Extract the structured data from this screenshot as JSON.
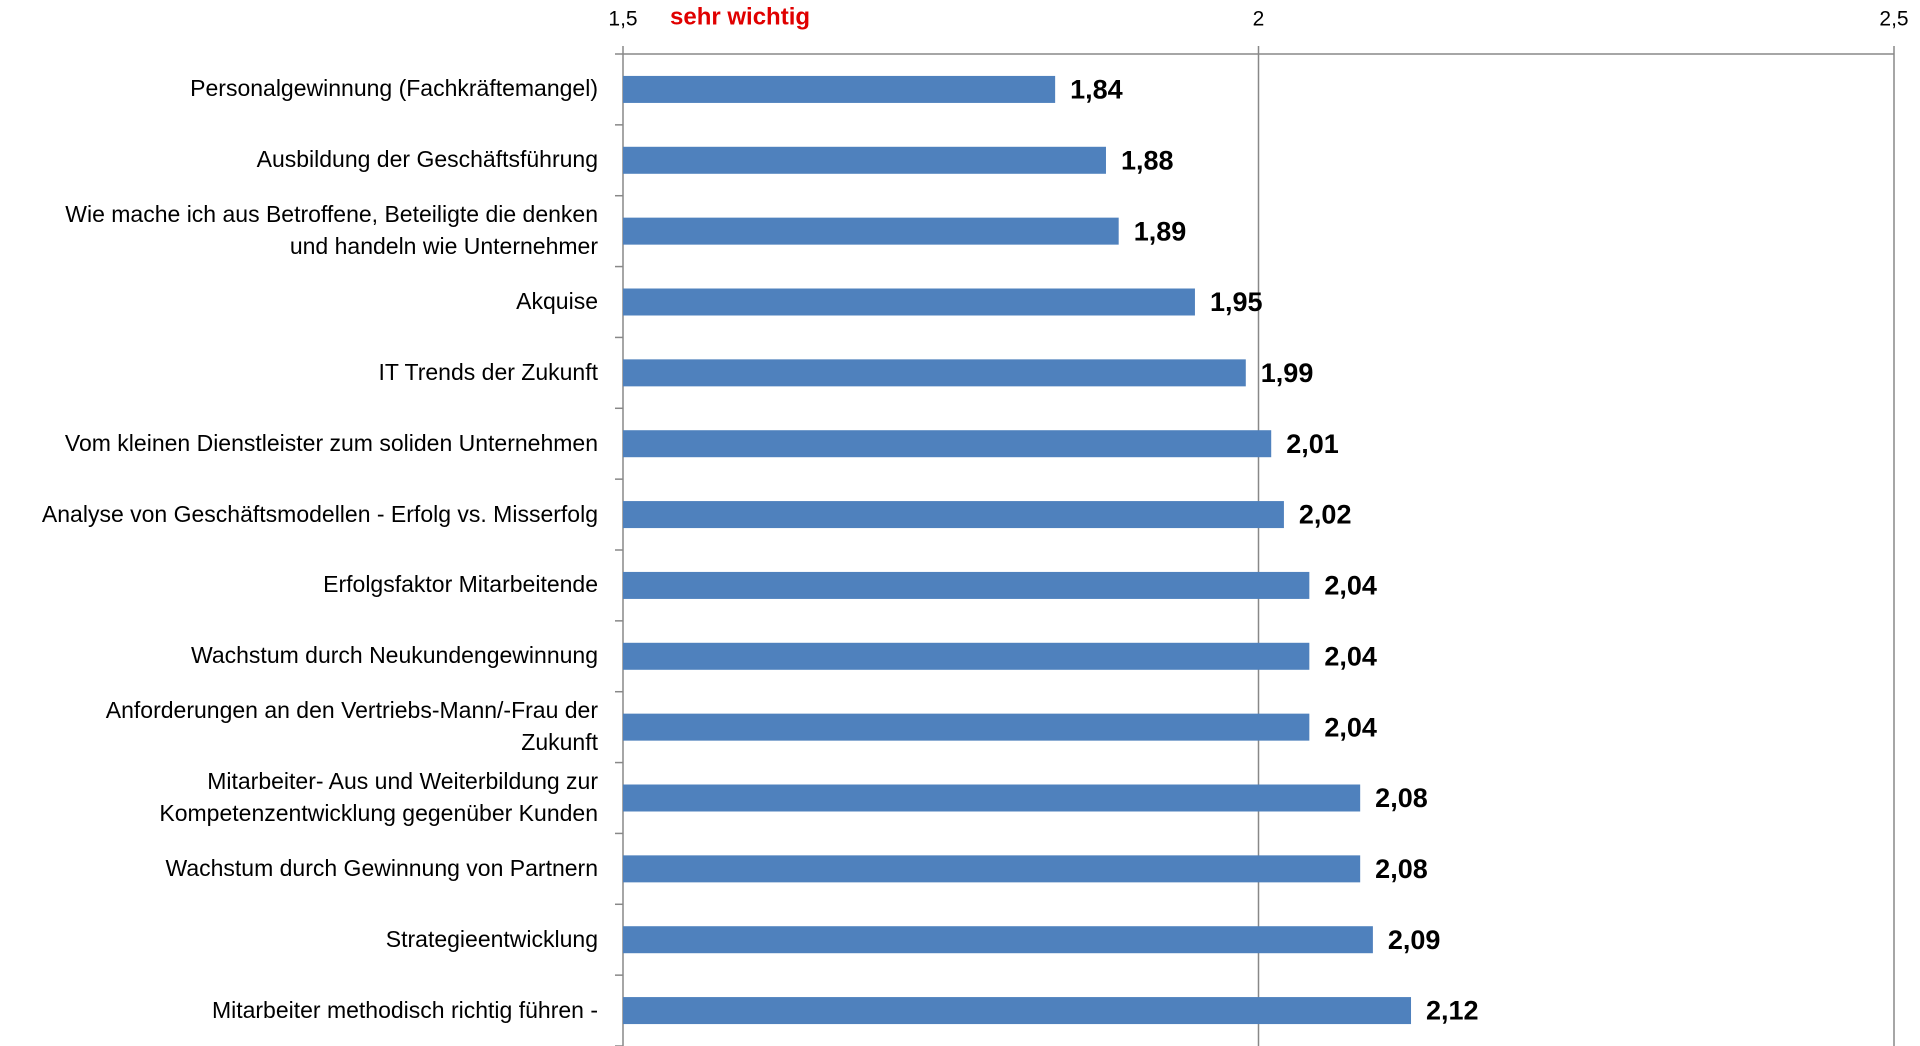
{
  "chart_data": {
    "type": "bar",
    "orientation": "horizontal",
    "annotation": "sehr wichtig",
    "categories": [
      "Personalgewinnung (Fachkräftemangel)",
      "Ausbildung der Geschäftsführung",
      "Wie mache ich aus Betroffene, Beteiligte die denken\nund handeln wie Unternehmer",
      "Akquise",
      "IT Trends der Zukunft",
      "Vom kleinen Dienstleister zum soliden Unternehmen",
      "Analyse von Geschäftsmodellen - Erfolg vs. Misserfolg",
      "Erfolgsfaktor Mitarbeitende",
      "Wachstum durch Neukundengewinnung",
      "Anforderungen an den Vertriebs-Mann/-Frau der\nZukunft",
      "Mitarbeiter- Aus und Weiterbildung zur\nKompetenzentwicklung gegenüber Kunden",
      "Wachstum durch Gewinnung von Partnern",
      "Strategieentwicklung",
      "Mitarbeiter methodisch richtig führen -"
    ],
    "values": [
      1.84,
      1.88,
      1.89,
      1.95,
      1.99,
      2.01,
      2.02,
      2.04,
      2.04,
      2.04,
      2.08,
      2.08,
      2.09,
      2.12
    ],
    "value_labels": [
      "1,84",
      "1,88",
      "1,89",
      "1,95",
      "1,99",
      "2,01",
      "2,02",
      "2,04",
      "2,04",
      "2,04",
      "2,08",
      "2,08",
      "2,09",
      "2,12"
    ],
    "color": "#4f81bd",
    "xlim": [
      1.5,
      2.5
    ],
    "xticks": [
      {
        "value": 1.5,
        "label": "1,5"
      },
      2,
      {
        "value": 2.5,
        "label": "2,5"
      }
    ],
    "grid": true
  }
}
